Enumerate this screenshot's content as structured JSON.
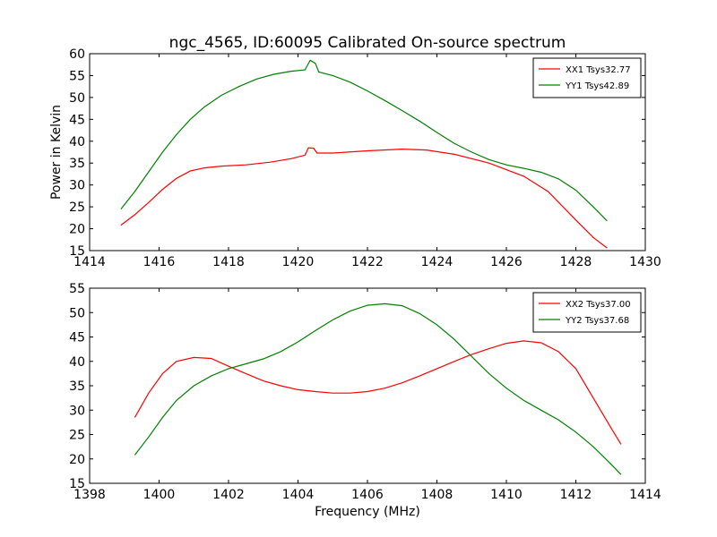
{
  "title": "ngc_4565, ID:60095 Calibrated On-source spectrum",
  "chart_data": [
    {
      "type": "line",
      "xlim": [
        1414,
        1430
      ],
      "ylim": [
        15,
        60
      ],
      "xticks": [
        1414,
        1416,
        1418,
        1420,
        1422,
        1424,
        1426,
        1428,
        1430
      ],
      "yticks": [
        15,
        20,
        25,
        30,
        35,
        40,
        45,
        50,
        55,
        60
      ],
      "xlabel": "",
      "ylabel": "Power in Kelvin",
      "legend_position": "top-right",
      "series": [
        {
          "name": "XX1 Tsys32.77",
          "color": "#ff0000",
          "points": [
            [
              1414.9,
              20.8
            ],
            [
              1415.3,
              23.2
            ],
            [
              1415.7,
              26.0
            ],
            [
              1416.1,
              29.0
            ],
            [
              1416.5,
              31.5
            ],
            [
              1416.9,
              33.2
            ],
            [
              1417.3,
              33.9
            ],
            [
              1417.8,
              34.3
            ],
            [
              1418.5,
              34.6
            ],
            [
              1419.2,
              35.2
            ],
            [
              1419.8,
              36.0
            ],
            [
              1420.2,
              36.8
            ],
            [
              1420.3,
              38.5
            ],
            [
              1420.45,
              38.4
            ],
            [
              1420.55,
              37.3
            ],
            [
              1421.0,
              37.3
            ],
            [
              1422.0,
              37.8
            ],
            [
              1423.0,
              38.2
            ],
            [
              1423.7,
              38.0
            ],
            [
              1424.5,
              37.0
            ],
            [
              1425.5,
              35.0
            ],
            [
              1426.5,
              32.0
            ],
            [
              1427.2,
              28.5
            ],
            [
              1428.0,
              22.0
            ],
            [
              1428.5,
              18.0
            ],
            [
              1428.9,
              15.6
            ]
          ]
        },
        {
          "name": "YY1 Tsys42.89",
          "color": "#008000",
          "points": [
            [
              1414.9,
              24.5
            ],
            [
              1415.3,
              28.5
            ],
            [
              1415.7,
              33.0
            ],
            [
              1416.1,
              37.5
            ],
            [
              1416.5,
              41.5
            ],
            [
              1416.9,
              45.0
            ],
            [
              1417.3,
              47.8
            ],
            [
              1417.8,
              50.5
            ],
            [
              1418.3,
              52.5
            ],
            [
              1418.8,
              54.2
            ],
            [
              1419.3,
              55.3
            ],
            [
              1419.8,
              56.0
            ],
            [
              1420.2,
              56.3
            ],
            [
              1420.35,
              58.5
            ],
            [
              1420.5,
              57.8
            ],
            [
              1420.6,
              55.8
            ],
            [
              1421.0,
              55.0
            ],
            [
              1421.5,
              53.5
            ],
            [
              1422.0,
              51.5
            ],
            [
              1422.5,
              49.3
            ],
            [
              1423.0,
              47.0
            ],
            [
              1423.5,
              44.6
            ],
            [
              1424.0,
              42.0
            ],
            [
              1424.5,
              39.5
            ],
            [
              1425.0,
              37.5
            ],
            [
              1425.5,
              35.8
            ],
            [
              1426.0,
              34.6
            ],
            [
              1426.5,
              33.8
            ],
            [
              1427.0,
              32.9
            ],
            [
              1427.5,
              31.4
            ],
            [
              1428.0,
              28.8
            ],
            [
              1428.5,
              25.0
            ],
            [
              1428.9,
              21.8
            ]
          ]
        }
      ]
    },
    {
      "type": "line",
      "xlim": [
        1398,
        1414
      ],
      "ylim": [
        15,
        55
      ],
      "xticks": [
        1398,
        1400,
        1402,
        1404,
        1406,
        1408,
        1410,
        1412,
        1414
      ],
      "yticks": [
        15,
        20,
        25,
        30,
        35,
        40,
        45,
        50,
        55
      ],
      "xlabel": "Frequency (MHz)",
      "ylabel": "",
      "legend_position": "top-right",
      "series": [
        {
          "name": "XX2 Tsys37.00",
          "color": "#ff0000",
          "points": [
            [
              1399.3,
              28.5
            ],
            [
              1399.7,
              33.5
            ],
            [
              1400.1,
              37.5
            ],
            [
              1400.5,
              40.0
            ],
            [
              1401.0,
              40.8
            ],
            [
              1401.5,
              40.6
            ],
            [
              1402.0,
              39.0
            ],
            [
              1402.5,
              37.5
            ],
            [
              1403.0,
              36.0
            ],
            [
              1403.5,
              35.0
            ],
            [
              1404.0,
              34.2
            ],
            [
              1404.5,
              33.8
            ],
            [
              1405.0,
              33.5
            ],
            [
              1405.5,
              33.5
            ],
            [
              1406.0,
              33.8
            ],
            [
              1406.5,
              34.5
            ],
            [
              1407.0,
              35.6
            ],
            [
              1407.5,
              37.0
            ],
            [
              1408.0,
              38.5
            ],
            [
              1408.5,
              40.0
            ],
            [
              1409.0,
              41.4
            ],
            [
              1409.5,
              42.6
            ],
            [
              1410.0,
              43.7
            ],
            [
              1410.5,
              44.2
            ],
            [
              1411.0,
              43.8
            ],
            [
              1411.5,
              42.0
            ],
            [
              1412.0,
              38.5
            ],
            [
              1412.5,
              32.5
            ],
            [
              1413.0,
              26.5
            ],
            [
              1413.3,
              23.0
            ]
          ]
        },
        {
          "name": "YY2 Tsys37.68",
          "color": "#008000",
          "points": [
            [
              1399.3,
              20.8
            ],
            [
              1399.7,
              24.5
            ],
            [
              1400.1,
              28.5
            ],
            [
              1400.5,
              32.0
            ],
            [
              1401.0,
              35.0
            ],
            [
              1401.5,
              37.0
            ],
            [
              1402.0,
              38.5
            ],
            [
              1402.5,
              39.5
            ],
            [
              1403.0,
              40.5
            ],
            [
              1403.5,
              42.0
            ],
            [
              1404.0,
              44.0
            ],
            [
              1404.5,
              46.3
            ],
            [
              1405.0,
              48.5
            ],
            [
              1405.5,
              50.3
            ],
            [
              1406.0,
              51.5
            ],
            [
              1406.5,
              51.8
            ],
            [
              1407.0,
              51.4
            ],
            [
              1407.5,
              49.8
            ],
            [
              1408.0,
              47.5
            ],
            [
              1408.5,
              44.5
            ],
            [
              1409.0,
              41.0
            ],
            [
              1409.5,
              37.5
            ],
            [
              1410.0,
              34.5
            ],
            [
              1410.5,
              32.0
            ],
            [
              1411.0,
              30.0
            ],
            [
              1411.5,
              28.0
            ],
            [
              1412.0,
              25.5
            ],
            [
              1412.5,
              22.5
            ],
            [
              1413.0,
              19.0
            ],
            [
              1413.3,
              16.8
            ]
          ]
        }
      ]
    }
  ]
}
